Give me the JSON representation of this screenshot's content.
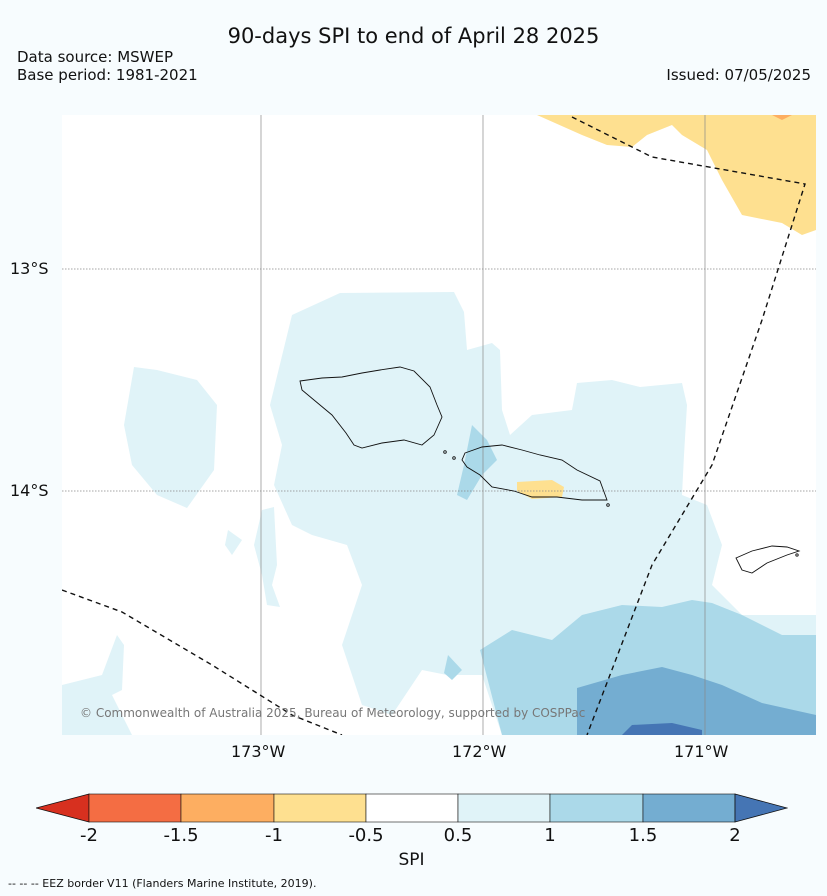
{
  "header": {
    "title": "90-days SPI to end of April 28 2025",
    "source": "Data source: MSWEP",
    "base_period": "Base period: 1981-2021",
    "issued": "Issued: 07/05/2025"
  },
  "map": {
    "lat_labels": [
      "13°S",
      "14°S"
    ],
    "lon_labels": [
      "173°W",
      "172°W",
      "171°W"
    ],
    "copyright": "© Commonwealth of Australia 2025, Bureau of Meteorology, supported by COSPPac"
  },
  "colorbar": {
    "label": "SPI",
    "ticks": [
      "-2",
      "-1.5",
      "-1",
      "-0.5",
      "0.5",
      "1",
      "1.5",
      "2"
    ],
    "colors": {
      "lt_-2": "#d7301f",
      "-2_-1.5": "#f46d43",
      "-1.5_-1": "#fdae61",
      "-1_-0.5": "#fee090",
      "-0.5_0.5": "#ffffff",
      "0.5_1": "#e0f3f8",
      "1_1.5": "#abd9e9",
      "1.5_2": "#74add1",
      "gt_2": "#4575b4"
    }
  },
  "footnote": "--  --  -- EEZ border V11 (Flanders Marine Institute, 2019)."
}
